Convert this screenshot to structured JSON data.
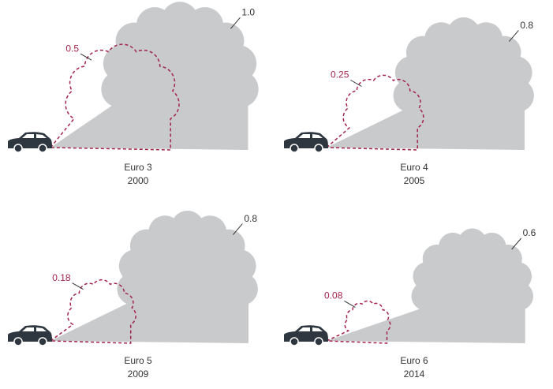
{
  "chart_data": {
    "type": "cloud",
    "categories": [
      "Euro 3",
      "Euro 4",
      "Euro 5",
      "Euro 6"
    ],
    "years": [
      "2000",
      "2005",
      "2009",
      "2014"
    ],
    "series": [
      {
        "color": "#c9cacc",
        "values": [
          1.0,
          0.8,
          0.8,
          0.6
        ],
        "value_labels": [
          "1.0",
          "0.8",
          "0.8",
          "0.6"
        ]
      },
      {
        "color": "#a3244a",
        "values": [
          0.5,
          0.25,
          0.18,
          0.08
        ]
      }
    ]
  }
}
